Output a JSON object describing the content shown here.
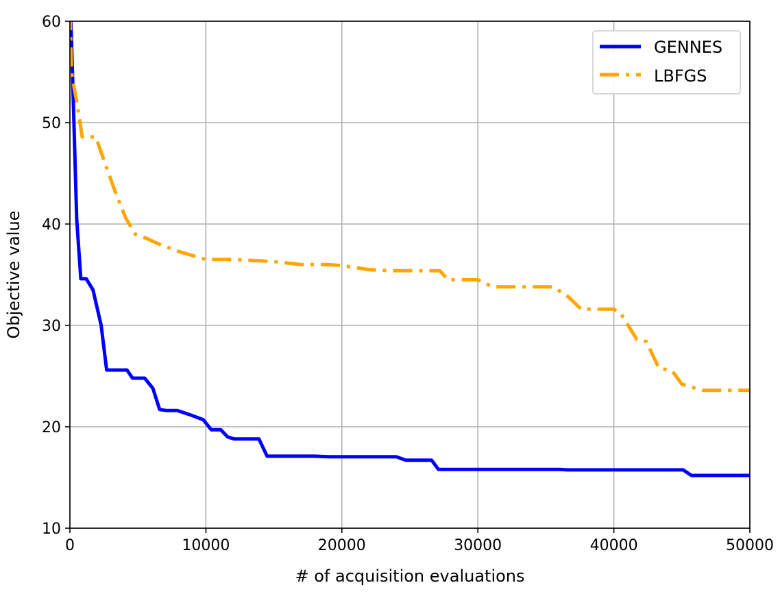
{
  "chart_data": {
    "type": "line",
    "title": "",
    "xlabel": "# of acquisition evaluations",
    "ylabel": "Objective value",
    "xlim": [
      0,
      50000
    ],
    "ylim": [
      10,
      60
    ],
    "xticks": [
      0,
      10000,
      20000,
      30000,
      40000,
      50000
    ],
    "yticks": [
      10,
      20,
      30,
      40,
      50,
      60
    ],
    "grid": true,
    "legend_position": "top-right",
    "series": [
      {
        "name": "GENNES",
        "color": "#0000ff",
        "linestyle": "solid",
        "x": [
          0,
          120,
          250,
          500,
          800,
          1200,
          1700,
          2300,
          2700,
          3300,
          4200,
          4600,
          5500,
          6100,
          6600,
          7100,
          7900,
          8800,
          9800,
          10400,
          11100,
          11600,
          12100,
          13000,
          13900,
          14500,
          16000,
          18000,
          19000,
          20000,
          22000,
          24000,
          24700,
          26000,
          26600,
          27100,
          30000,
          33000,
          36000,
          36600,
          40000,
          43000,
          45100,
          45700,
          48000,
          50000
        ],
        "y": [
          62,
          58,
          52,
          40.5,
          34.6,
          34.6,
          33.5,
          30,
          25.6,
          25.6,
          25.6,
          24.8,
          24.8,
          23.8,
          21.7,
          21.6,
          21.6,
          21.2,
          20.7,
          19.7,
          19.7,
          19,
          18.8,
          18.8,
          18.8,
          17.1,
          17.1,
          17.1,
          17.05,
          17.05,
          17.05,
          17.05,
          16.7,
          16.7,
          16.7,
          15.8,
          15.8,
          15.8,
          15.8,
          15.75,
          15.75,
          15.75,
          15.75,
          15.2,
          15.2,
          15.2
        ]
      },
      {
        "name": "LBFGS",
        "color": "#ffa500",
        "linestyle": "dashdot",
        "x": [
          0,
          120,
          300,
          500,
          900,
          1400,
          1900,
          2500,
          3300,
          4100,
          4800,
          5600,
          6600,
          8000,
          10000,
          12000,
          15000,
          17000,
          19000,
          20000,
          22000,
          23500,
          25500,
          26500,
          27200,
          27800,
          29000,
          30000,
          31100,
          32500,
          35500,
          36500,
          37600,
          38500,
          40000,
          40500,
          41700,
          42400,
          43300,
          44300,
          45000,
          45500,
          46500,
          48000,
          50000
        ],
        "y": [
          61,
          55,
          53.5,
          52.1,
          48.6,
          48.6,
          48.6,
          46.3,
          43.3,
          40.6,
          39,
          38.6,
          38,
          37.3,
          36.5,
          36.5,
          36.3,
          36,
          36,
          35.9,
          35.5,
          35.4,
          35.4,
          35.4,
          35.4,
          34.5,
          34.5,
          34.5,
          33.8,
          33.8,
          33.8,
          33,
          31.6,
          31.6,
          31.6,
          31.2,
          28.6,
          28.4,
          25.8,
          25.5,
          24.2,
          24.0,
          23.6,
          23.6,
          23.6
        ]
      }
    ]
  }
}
